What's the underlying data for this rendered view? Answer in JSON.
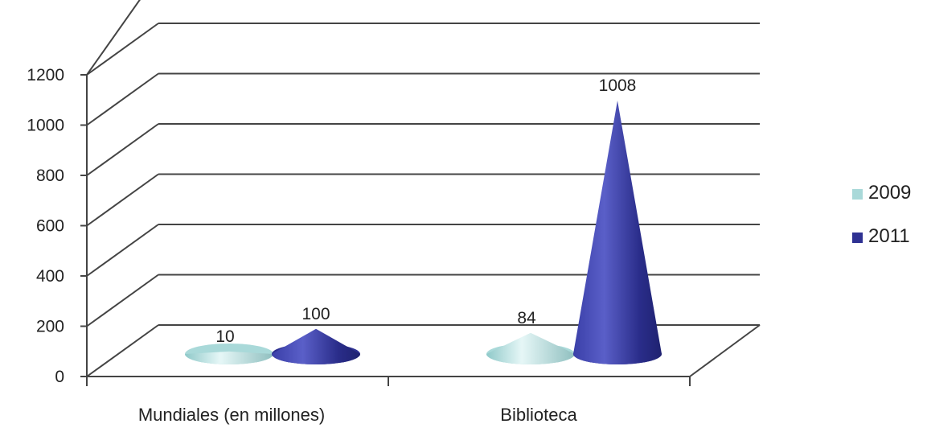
{
  "chart_data": {
    "type": "bar",
    "categories": [
      "Mundiales (en millones)",
      "Biblioteca"
    ],
    "series": [
      {
        "name": "2009",
        "values": [
          10,
          84
        ],
        "color": "#a9d9d9"
      },
      {
        "name": "2011",
        "values": [
          100,
          1008
        ],
        "color": "#2e3192"
      }
    ],
    "data_labels": {
      "2009": [
        "10",
        "84"
      ],
      "2011": [
        "100",
        "1008"
      ]
    },
    "ylim": [
      0,
      1200
    ],
    "y_ticks": [
      "0",
      "200",
      "400",
      "600",
      "800",
      "1000",
      "1200"
    ],
    "y_tick_values": [
      0,
      200,
      400,
      600,
      800,
      1000,
      1200
    ],
    "grid": true,
    "legend_position": "right",
    "shape": "cone"
  }
}
